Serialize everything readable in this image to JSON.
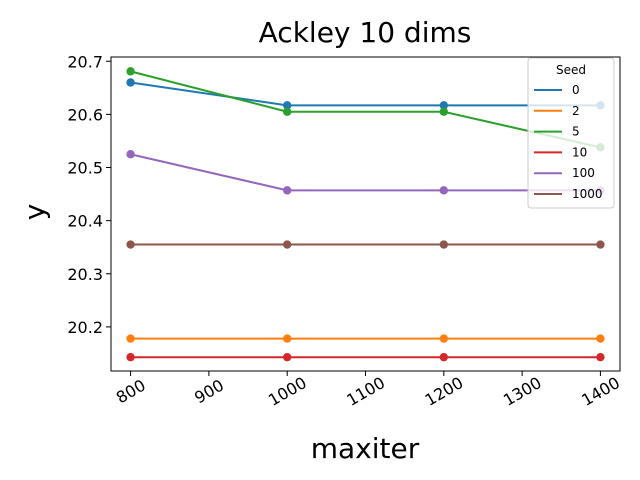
{
  "chart_data": {
    "type": "line",
    "title": "Ackley 10 dims",
    "xlabel": "maxiter",
    "ylabel": "y",
    "x": [
      800,
      1000,
      1200,
      1400
    ],
    "xlim": [
      775,
      1425
    ],
    "ylim": [
      20.117,
      20.708
    ],
    "xticks": [
      800,
      900,
      1000,
      1100,
      1200,
      1300,
      1400
    ],
    "yticks": [
      20.2,
      20.3,
      20.4,
      20.5,
      20.6,
      20.7
    ],
    "ytick_labels": [
      "20.2",
      "20.3",
      "20.4",
      "20.5",
      "20.6",
      "20.7"
    ],
    "grid": false,
    "legend_title": "Seed",
    "legend_position": "top-right",
    "series": [
      {
        "name": "0",
        "color": "#1f77b4",
        "values": [
          20.66,
          20.617,
          20.617,
          20.617
        ]
      },
      {
        "name": "2",
        "color": "#ff7f0e",
        "values": [
          20.178,
          20.178,
          20.178,
          20.178
        ]
      },
      {
        "name": "5",
        "color": "#2ca02c",
        "values": [
          20.681,
          20.605,
          20.605,
          20.538
        ]
      },
      {
        "name": "10",
        "color": "#d62728",
        "values": [
          20.143,
          20.143,
          20.143,
          20.143
        ]
      },
      {
        "name": "100",
        "color": "#9467bd",
        "values": [
          20.525,
          20.457,
          20.457,
          20.457
        ]
      },
      {
        "name": "1000",
        "color": "#8c564b",
        "values": [
          20.355,
          20.355,
          20.355,
          20.355
        ]
      }
    ]
  }
}
